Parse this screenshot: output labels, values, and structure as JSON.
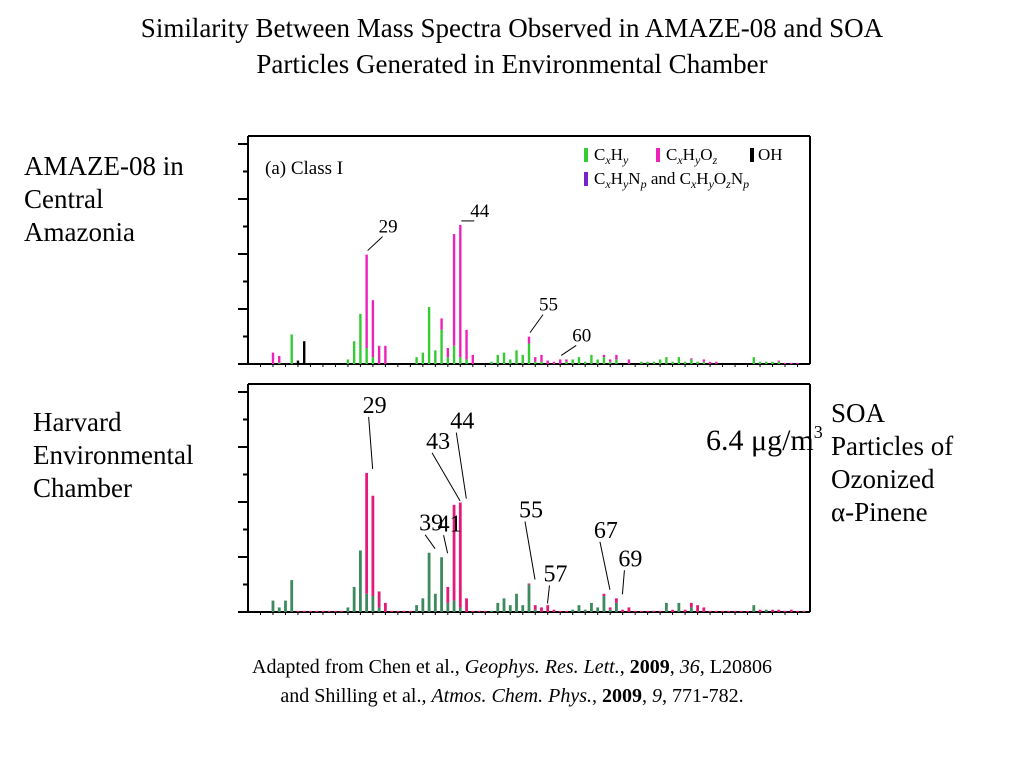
{
  "title_line1": "Similarity Between Mass Spectra Observed in AMAZE-08 and SOA",
  "title_line2": "Particles Generated in Environmental Chamber",
  "label_top_left": [
    "AMAZE-08 in",
    "Central",
    "Amazonia"
  ],
  "label_bottom_left": [
    "Harvard",
    "Environmental",
    "Chamber"
  ],
  "label_bottom_right": [
    "SOA",
    "Particles of",
    "Ozonized",
    "α-Pinene"
  ],
  "citation": {
    "line1": {
      "pre": "Adapted from Chen et al., ",
      "journal": "Geophys. Res. Lett.",
      "sep1": ", ",
      "year": "2009",
      "sep2": ", ",
      "volume": "36",
      "rest": ", L20806"
    },
    "line2": {
      "pre": "and Shilling et al., ",
      "journal": "Atmos. Chem. Phys.",
      "sep1": ", ",
      "year": "2009",
      "sep2": ", ",
      "volume": "9",
      "rest": ", 771-782."
    }
  },
  "colors": {
    "CxHy": "#33cc33",
    "CxHyOz": "#ee22bb",
    "OH": "#000000",
    "CxHyNp": "#7722cc",
    "chamber_hydrocarbon": "#3d8a5e",
    "chamber_oxygenated": "#e6197a"
  },
  "chart_data": [
    {
      "type": "bar",
      "stacked": true,
      "panel_label": "(a) Class I",
      "legend": [
        {
          "name": "CxHy",
          "key": "CxHy"
        },
        {
          "name": "CxHyOz",
          "key": "CxHyOz"
        },
        {
          "name": "OH",
          "key": "OH"
        },
        {
          "name": "CxHyNp and CxHyOzNp",
          "key": "CxHyNp"
        }
      ],
      "legend_placement": "top-right",
      "xlim": [
        10,
        100
      ],
      "ylim": [
        0,
        10
      ],
      "y_tick_count": 8,
      "bars": [
        {
          "mz": 14,
          "CxHyOz": 0.5
        },
        {
          "mz": 15,
          "CxHy": 0.05,
          "CxHyOz": 0.3
        },
        {
          "mz": 17,
          "CxHy": 1.3
        },
        {
          "mz": 18,
          "OH": 0.15
        },
        {
          "mz": 19,
          "OH": 1.0
        },
        {
          "mz": 26,
          "CxHy": 0.2
        },
        {
          "mz": 27,
          "CxHy": 1.0
        },
        {
          "mz": 28,
          "CxHy": 2.2
        },
        {
          "mz": 29,
          "CxHy": 0.7,
          "CxHyOz": 4.1
        },
        {
          "mz": 30,
          "CxHy": 0.3,
          "CxHyOz": 2.5
        },
        {
          "mz": 31,
          "CxHyOz": 0.8
        },
        {
          "mz": 32,
          "CxHyOz": 0.8
        },
        {
          "mz": 37,
          "CxHy": 0.3
        },
        {
          "mz": 38,
          "CxHy": 0.5
        },
        {
          "mz": 39,
          "CxHy": 2.5
        },
        {
          "mz": 40,
          "CxHy": 0.6
        },
        {
          "mz": 41,
          "CxHy": 1.5,
          "CxHyOz": 0.5
        },
        {
          "mz": 42,
          "CxHy": 0.3,
          "CxHyOz": 0.4
        },
        {
          "mz": 43,
          "CxHy": 0.8,
          "CxHyOz": 4.9
        },
        {
          "mz": 44,
          "CxHy": 0.3,
          "CxHyOz": 5.8
        },
        {
          "mz": 45,
          "CxHy": 0.2,
          "CxHyOz": 1.3
        },
        {
          "mz": 46,
          "CxHyOz": 0.4
        },
        {
          "mz": 49,
          "CxHy": 0.1
        },
        {
          "mz": 50,
          "CxHy": 0.4
        },
        {
          "mz": 51,
          "CxHy": 0.5
        },
        {
          "mz": 52,
          "CxHy": 0.2
        },
        {
          "mz": 53,
          "CxHy": 0.6
        },
        {
          "mz": 54,
          "CxHy": 0.4
        },
        {
          "mz": 55,
          "CxHy": 0.9,
          "CxHyOz": 0.3
        },
        {
          "mz": 56,
          "CxHy": 0.1,
          "CxHyOz": 0.2
        },
        {
          "mz": 57,
          "CxHy": 0.1,
          "CxHyOz": 0.3
        },
        {
          "mz": 58,
          "CxHyOz": 0.15
        },
        {
          "mz": 59,
          "CxHyOz": 0.1
        },
        {
          "mz": 60,
          "CxHyOz": 0.2
        },
        {
          "mz": 61,
          "CxHy": 0.1,
          "CxHyOz": 0.1
        },
        {
          "mz": 62,
          "CxHy": 0.2
        },
        {
          "mz": 63,
          "CxHy": 0.3
        },
        {
          "mz": 64,
          "CxHy": 0.1
        },
        {
          "mz": 65,
          "CxHy": 0.4
        },
        {
          "mz": 66,
          "CxHy": 0.2
        },
        {
          "mz": 67,
          "CxHy": 0.3,
          "CxHyOz": 0.1
        },
        {
          "mz": 68,
          "CxHy": 0.1,
          "CxHyOz": 0.1
        },
        {
          "mz": 69,
          "CxHy": 0.2,
          "CxHyOz": 0.2
        },
        {
          "mz": 71,
          "CxHyOz": 0.2
        },
        {
          "mz": 73,
          "CxHy": 0.1
        },
        {
          "mz": 74,
          "CxHy": 0.1
        },
        {
          "mz": 75,
          "CxHy": 0.1
        },
        {
          "mz": 76,
          "CxHy": 0.2
        },
        {
          "mz": 77,
          "CxHy": 0.3
        },
        {
          "mz": 78,
          "CxHy": 0.1
        },
        {
          "mz": 79,
          "CxHy": 0.3
        },
        {
          "mz": 80,
          "CxHy": 0.1
        },
        {
          "mz": 81,
          "CxHy": 0.2,
          "CxHyOz": 0.05
        },
        {
          "mz": 82,
          "CxHy": 0.1
        },
        {
          "mz": 83,
          "CxHy": 0.1,
          "CxHyOz": 0.1
        },
        {
          "mz": 84,
          "CxHyOz": 0.1
        },
        {
          "mz": 85,
          "CxHyOz": 0.1
        },
        {
          "mz": 91,
          "CxHy": 0.3
        },
        {
          "mz": 92,
          "CxHy": 0.1
        },
        {
          "mz": 93,
          "CxHy": 0.1
        },
        {
          "mz": 94,
          "CxHy": 0.1
        },
        {
          "mz": 95,
          "CxHy": 0.1,
          "CxHyOz": 0.05
        },
        {
          "mz": 96,
          "CxHyOz": 0.05
        },
        {
          "mz": 97,
          "CxHyOz": 0.05
        },
        {
          "mz": 98,
          "CxHyOz": 0.05
        }
      ],
      "peak_labels": [
        {
          "text": "29",
          "mz": 29
        },
        {
          "text": "44",
          "mz": 44
        },
        {
          "text": "55",
          "mz": 55
        },
        {
          "text": "60",
          "mz": 60
        }
      ]
    },
    {
      "type": "bar",
      "stacked": true,
      "annotation": "6.4 μg/m3",
      "xlim": [
        10,
        100
      ],
      "ylim": [
        0,
        10
      ],
      "y_tick_count": 8,
      "bars": [
        {
          "mz": 14,
          "chamber_hydrocarbon": 0.5
        },
        {
          "mz": 15,
          "chamber_hydrocarbon": 0.2
        },
        {
          "mz": 16,
          "chamber_hydrocarbon": 0.5
        },
        {
          "mz": 17,
          "chamber_hydrocarbon": 1.4
        },
        {
          "mz": 18,
          "chamber_oxygenated": 0.05
        },
        {
          "mz": 19,
          "chamber_oxygenated": 0.05
        },
        {
          "mz": 20,
          "chamber_oxygenated": 0.05
        },
        {
          "mz": 21,
          "chamber_oxygenated": 0.05
        },
        {
          "mz": 22,
          "chamber_oxygenated": 0.05
        },
        {
          "mz": 23,
          "chamber_oxygenated": 0.05
        },
        {
          "mz": 24,
          "chamber_oxygenated": 0.05
        },
        {
          "mz": 25,
          "chamber_oxygenated": 0.05
        },
        {
          "mz": 26,
          "chamber_hydrocarbon": 0.2
        },
        {
          "mz": 27,
          "chamber_hydrocarbon": 1.1
        },
        {
          "mz": 28,
          "chamber_hydrocarbon": 2.7
        },
        {
          "mz": 29,
          "chamber_hydrocarbon": 0.8,
          "chamber_oxygenated": 5.3
        },
        {
          "mz": 30,
          "chamber_hydrocarbon": 0.7,
          "chamber_oxygenated": 4.4
        },
        {
          "mz": 31,
          "chamber_hydrocarbon": 0.2,
          "chamber_oxygenated": 0.7
        },
        {
          "mz": 32,
          "chamber_oxygenated": 0.4
        },
        {
          "mz": 33,
          "chamber_oxygenated": 0.05
        },
        {
          "mz": 34,
          "chamber_oxygenated": 0.05
        },
        {
          "mz": 35,
          "chamber_oxygenated": 0.05
        },
        {
          "mz": 36,
          "chamber_oxygenated": 0.05
        },
        {
          "mz": 37,
          "chamber_hydrocarbon": 0.3
        },
        {
          "mz": 38,
          "chamber_hydrocarbon": 0.6
        },
        {
          "mz": 39,
          "chamber_hydrocarbon": 2.6
        },
        {
          "mz": 40,
          "chamber_hydrocarbon": 0.8
        },
        {
          "mz": 41,
          "chamber_hydrocarbon": 2.4
        },
        {
          "mz": 42,
          "chamber_hydrocarbon": 0.4,
          "chamber_oxygenated": 0.7
        },
        {
          "mz": 43,
          "chamber_hydrocarbon": 0.5,
          "chamber_oxygenated": 4.2
        },
        {
          "mz": 44,
          "chamber_hydrocarbon": 0.2,
          "chamber_oxygenated": 4.6
        },
        {
          "mz": 45,
          "chamber_oxygenated": 0.6
        },
        {
          "mz": 46,
          "chamber_oxygenated": 0.05
        },
        {
          "mz": 47,
          "chamber_oxygenated": 0.05
        },
        {
          "mz": 48,
          "chamber_oxygenated": 0.05
        },
        {
          "mz": 49,
          "chamber_hydrocarbon": 0.05
        },
        {
          "mz": 50,
          "chamber_hydrocarbon": 0.4
        },
        {
          "mz": 51,
          "chamber_hydrocarbon": 0.6
        },
        {
          "mz": 52,
          "chamber_hydrocarbon": 0.3
        },
        {
          "mz": 53,
          "chamber_hydrocarbon": 0.8
        },
        {
          "mz": 54,
          "chamber_hydrocarbon": 0.3
        },
        {
          "mz": 55,
          "chamber_hydrocarbon": 1.2,
          "chamber_oxygenated": 0.05
        },
        {
          "mz": 56,
          "chamber_hydrocarbon": 0.1,
          "chamber_oxygenated": 0.2
        },
        {
          "mz": 57,
          "chamber_oxygenated": 0.2
        },
        {
          "mz": 58,
          "chamber_oxygenated": 0.3
        },
        {
          "mz": 59,
          "chamber_oxygenated": 0.1
        },
        {
          "mz": 60,
          "chamber_oxygenated": 0.05
        },
        {
          "mz": 61,
          "chamber_oxygenated": 0.05
        },
        {
          "mz": 62,
          "chamber_hydrocarbon": 0.1
        },
        {
          "mz": 63,
          "chamber_hydrocarbon": 0.3
        },
        {
          "mz": 64,
          "chamber_hydrocarbon": 0.1
        },
        {
          "mz": 65,
          "chamber_hydrocarbon": 0.4
        },
        {
          "mz": 66,
          "chamber_hydrocarbon": 0.2
        },
        {
          "mz": 67,
          "chamber_hydrocarbon": 0.7,
          "chamber_oxygenated": 0.1
        },
        {
          "mz": 68,
          "chamber_hydrocarbon": 0.1,
          "chamber_oxygenated": 0.1
        },
        {
          "mz": 69,
          "chamber_hydrocarbon": 0.4,
          "chamber_oxygenated": 0.2
        },
        {
          "mz": 70,
          "chamber_oxygenated": 0.1
        },
        {
          "mz": 71,
          "chamber_oxygenated": 0.2
        },
        {
          "mz": 72,
          "chamber_oxygenated": 0.05
        },
        {
          "mz": 73,
          "chamber_oxygenated": 0.05
        },
        {
          "mz": 74,
          "chamber_oxygenated": 0.05
        },
        {
          "mz": 75,
          "chamber_oxygenated": 0.05
        },
        {
          "mz": 76,
          "chamber_oxygenated": 0.05
        },
        {
          "mz": 77,
          "chamber_hydrocarbon": 0.4
        },
        {
          "mz": 78,
          "chamber_oxygenated": 0.1
        },
        {
          "mz": 79,
          "chamber_hydrocarbon": 0.4
        },
        {
          "mz": 80,
          "chamber_oxygenated": 0.1
        },
        {
          "mz": 81,
          "chamber_hydrocarbon": 0.2,
          "chamber_oxygenated": 0.2
        },
        {
          "mz": 82,
          "chamber_oxygenated": 0.3
        },
        {
          "mz": 83,
          "chamber_oxygenated": 0.2
        },
        {
          "mz": 84,
          "chamber_oxygenated": 0.05
        },
        {
          "mz": 85,
          "chamber_oxygenated": 0.05
        },
        {
          "mz": 86,
          "chamber_oxygenated": 0.05
        },
        {
          "mz": 87,
          "chamber_oxygenated": 0.05
        },
        {
          "mz": 88,
          "chamber_oxygenated": 0.05
        },
        {
          "mz": 89,
          "chamber_oxygenated": 0.05
        },
        {
          "mz": 90,
          "chamber_oxygenated": 0.05
        },
        {
          "mz": 91,
          "chamber_hydrocarbon": 0.3
        },
        {
          "mz": 92,
          "chamber_oxygenated": 0.1
        },
        {
          "mz": 93,
          "chamber_hydrocarbon": 0.1
        },
        {
          "mz": 94,
          "chamber_oxygenated": 0.1
        },
        {
          "mz": 95,
          "chamber_oxygenated": 0.1
        },
        {
          "mz": 96,
          "chamber_oxygenated": 0.05
        },
        {
          "mz": 97,
          "chamber_oxygenated": 0.1
        },
        {
          "mz": 98,
          "chamber_oxygenated": 0.05
        },
        {
          "mz": 99,
          "chamber_oxygenated": 0.05
        }
      ],
      "peak_labels": [
        {
          "text": "29",
          "mz": 29
        },
        {
          "text": "39",
          "mz": 39
        },
        {
          "text": "41",
          "mz": 41
        },
        {
          "text": "43",
          "mz": 43
        },
        {
          "text": "44",
          "mz": 44
        },
        {
          "text": "55",
          "mz": 55
        },
        {
          "text": "57",
          "mz": 57
        },
        {
          "text": "67",
          "mz": 67
        },
        {
          "text": "69",
          "mz": 69
        }
      ]
    }
  ]
}
